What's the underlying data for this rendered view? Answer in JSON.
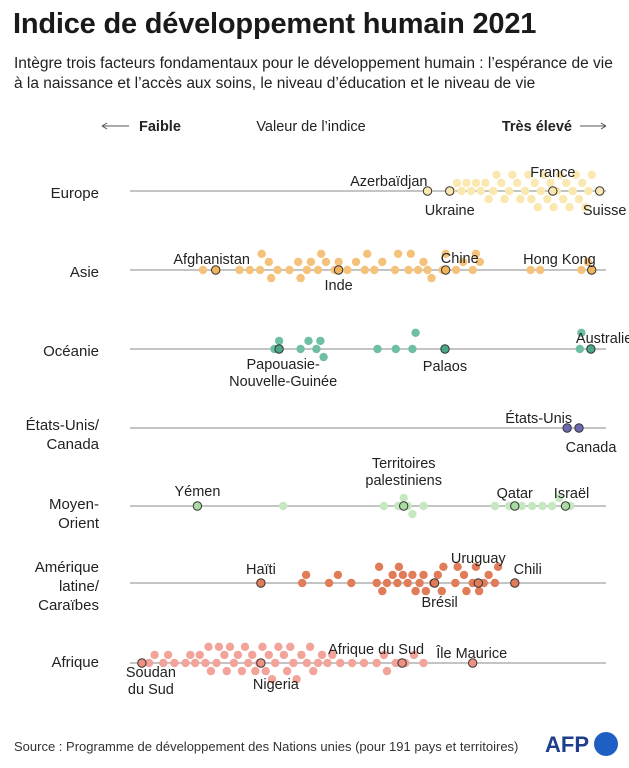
{
  "title": "Indice de développement humain 2021",
  "subtitle": "Intègre trois facteurs fondamentaux pour le développement humain : l’espérance de vie à la naissance et l’accès aux soins, le niveau d’éducation et le niveau de vie",
  "source": "Source : Programme de développement des Nations unies (pour 191 pays et territoires)",
  "logo_text": "AFP",
  "chart_data": {
    "type": "scatter",
    "axis_left": "Faible",
    "axis_center": "Valeur de l’indice",
    "axis_right": "Très élevé",
    "xlim": [
      0.37,
      0.97
    ],
    "regions": [
      {
        "name_lines": [
          "Europe"
        ],
        "color": "#fbe7b0",
        "highlight_color": "#fbe7b0",
        "values": [
          0.775,
          0.782,
          0.788,
          0.794,
          0.8,
          0.806,
          0.812,
          0.818,
          0.822,
          0.828,
          0.832,
          0.838,
          0.842,
          0.848,
          0.852,
          0.858,
          0.862,
          0.868,
          0.872,
          0.876,
          0.88,
          0.884,
          0.888,
          0.892,
          0.896,
          0.9,
          0.904,
          0.908,
          0.912,
          0.916,
          0.92,
          0.924,
          0.928,
          0.932,
          0.936,
          0.94,
          0.944,
          0.948,
          0.952
        ],
        "highlights": [
          {
            "name": "Azerbaïdjan",
            "value": 0.745
          },
          {
            "name": "Ukraine",
            "value": 0.773
          },
          {
            "name": "France",
            "value": 0.903
          },
          {
            "name": "Suisse",
            "value": 0.962
          }
        ]
      },
      {
        "name_lines": [
          "Asie"
        ],
        "color": "#f4c27a",
        "highlight_color": "#f0b45a",
        "values": [
          0.462,
          0.479,
          0.508,
          0.521,
          0.534,
          0.536,
          0.545,
          0.548,
          0.556,
          0.571,
          0.582,
          0.585,
          0.593,
          0.598,
          0.607,
          0.611,
          0.617,
          0.628,
          0.633,
          0.644,
          0.655,
          0.666,
          0.669,
          0.678,
          0.688,
          0.704,
          0.708,
          0.721,
          0.724,
          0.733,
          0.74,
          0.745,
          0.75,
          0.764,
          0.768,
          0.781,
          0.79,
          0.802,
          0.806,
          0.811,
          0.875,
          0.887,
          0.939,
          0.947
        ],
        "highlights": [
          {
            "name": "Afghanistan",
            "value": 0.478
          },
          {
            "name": "Inde",
            "value": 0.633
          },
          {
            "name": "Chine",
            "value": 0.768
          },
          {
            "name": "Hong Kong",
            "value": 0.952
          }
        ]
      },
      {
        "name_lines": [
          "Océanie"
        ],
        "color": "#6fbfa5",
        "highlight_color": "#4aa888",
        "values": [
          0.552,
          0.558,
          0.585,
          0.595,
          0.605,
          0.61,
          0.614,
          0.682,
          0.705,
          0.726,
          0.73,
          0.937,
          0.939
        ],
        "highlights": [
          {
            "name": "Papouasie-Nouvelle-Guinée",
            "name_lines": [
              "Papouasie-",
              "Nouvelle-Guinée"
            ],
            "value": 0.558
          },
          {
            "name": "Palaos",
            "value": 0.767
          },
          {
            "name": "Australie",
            "value": 0.951
          }
        ]
      },
      {
        "name_lines": [
          "États-Unis/",
          "Canada"
        ],
        "color": "#6a6ab0",
        "highlight_color": "#6a6ab0",
        "values": [],
        "highlights": [
          {
            "name": "États-Unis",
            "value": 0.921
          },
          {
            "name": "Canada",
            "value": 0.936
          }
        ]
      },
      {
        "name_lines": [
          "Moyen-",
          "Orient"
        ],
        "color": "#c5e8c0",
        "highlight_color": "#a8dca0",
        "values": [
          0.563,
          0.69,
          0.708,
          0.715,
          0.72,
          0.726,
          0.74,
          0.83,
          0.848,
          0.864,
          0.877,
          0.89,
          0.902,
          0.911,
          0.925
        ],
        "highlights": [
          {
            "name": "Yémen",
            "value": 0.455
          },
          {
            "name": "Territoires palestiniens",
            "name_lines": [
              "Territoires",
              "palestiniens"
            ],
            "value": 0.715
          },
          {
            "name": "Qatar",
            "value": 0.855
          },
          {
            "name": "Israël",
            "value": 0.919
          }
        ]
      },
      {
        "name_lines": [
          "Amérique",
          "latine/",
          "Caraïbes"
        ],
        "color": "#e07c58",
        "highlight_color": "#e07c58",
        "values": [
          0.587,
          0.592,
          0.621,
          0.632,
          0.649,
          0.681,
          0.684,
          0.688,
          0.694,
          0.701,
          0.707,
          0.709,
          0.714,
          0.72,
          0.726,
          0.73,
          0.735,
          0.74,
          0.743,
          0.752,
          0.758,
          0.763,
          0.765,
          0.78,
          0.783,
          0.791,
          0.794,
          0.802,
          0.806,
          0.81,
          0.816,
          0.822,
          0.83,
          0.834
        ],
        "highlights": [
          {
            "name": "Haïti",
            "value": 0.535
          },
          {
            "name": "Brésil",
            "value": 0.754
          },
          {
            "name": "Uruguay",
            "value": 0.809
          },
          {
            "name": "Chili",
            "value": 0.855
          }
        ]
      },
      {
        "name_lines": [
          "Afrique"
        ],
        "color": "#f2a39a",
        "highlight_color": "#ef9085",
        "values": [
          0.394,
          0.401,
          0.412,
          0.418,
          0.426,
          0.44,
          0.446,
          0.452,
          0.458,
          0.465,
          0.469,
          0.472,
          0.479,
          0.482,
          0.489,
          0.492,
          0.496,
          0.501,
          0.506,
          0.511,
          0.515,
          0.519,
          0.524,
          0.528,
          0.533,
          0.537,
          0.541,
          0.545,
          0.549,
          0.553,
          0.557,
          0.564,
          0.568,
          0.572,
          0.576,
          0.58,
          0.586,
          0.593,
          0.597,
          0.601,
          0.607,
          0.612,
          0.619,
          0.625,
          0.635,
          0.65,
          0.665,
          0.681,
          0.69,
          0.694,
          0.705,
          0.717,
          0.728,
          0.74
        ],
        "highlights": [
          {
            "name": "Soudan du Sud",
            "name_lines": [
              "Soudan",
              "du Sud"
            ],
            "value": 0.385
          },
          {
            "name": "Nigeria",
            "value": 0.535
          },
          {
            "name": "Afrique du Sud",
            "value": 0.713
          },
          {
            "name": "Île Maurice",
            "value": 0.802
          }
        ]
      }
    ]
  }
}
